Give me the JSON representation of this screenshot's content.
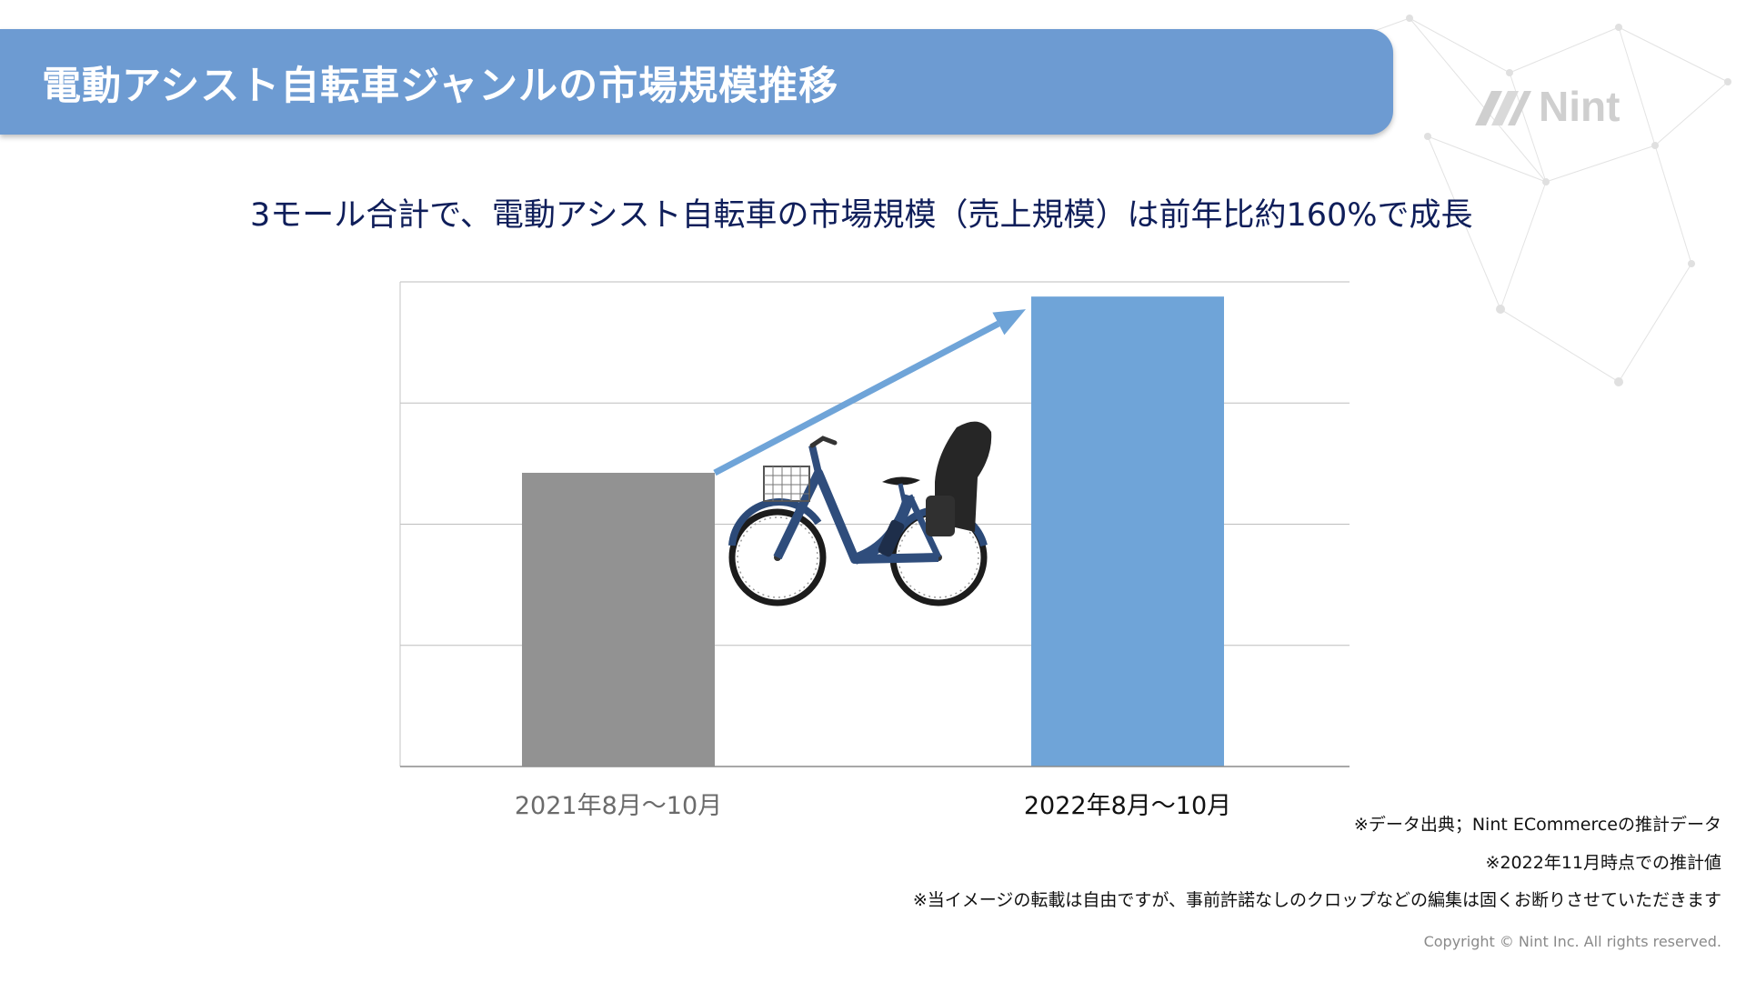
{
  "header": {
    "title": "電動アシスト自転車ジャンルの市場規模推移",
    "logo_text": "Nint"
  },
  "subtitle": "3モール合計で、電動アシスト自転車の市場規模（売上規模）は前年比約160%で成長",
  "chart_data": {
    "type": "bar",
    "categories": [
      "2021年8月〜10月",
      "2022年8月〜10月"
    ],
    "series": [
      {
        "values": [
          100,
          160
        ]
      }
    ],
    "bar_colors": [
      "#929292",
      "#6fa4d8"
    ],
    "ylim": [
      0,
      165
    ],
    "gridlines": 4,
    "axis_value_labels": "none",
    "trend_arrow_color": "#6fa4d8",
    "xlabel": "",
    "ylabel": ""
  },
  "notes": [
    "※データ出典；Nint ECommerceの推計データ",
    "※2022年11月時点での推計値",
    "※当イメージの転載は自由ですが、事前許諾なしのクロップなどの編集は固くお断りさせていただきます"
  ],
  "copyright": "Copyright © Nint Inc. All rights reserved.",
  "colors": {
    "banner": "#6d9bd2",
    "subtitle_text": "#0f1e5a",
    "bar_2021": "#929292",
    "bar_2022": "#6fa4d8"
  }
}
